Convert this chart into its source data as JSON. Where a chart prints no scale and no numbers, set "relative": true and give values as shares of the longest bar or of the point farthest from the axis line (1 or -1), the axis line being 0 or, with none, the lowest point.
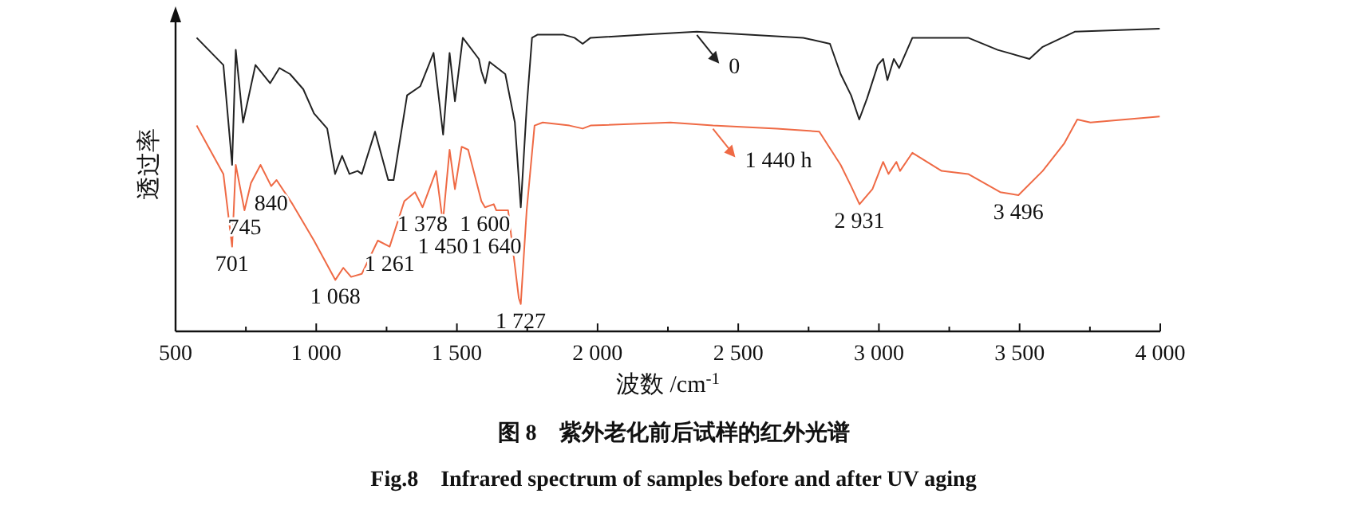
{
  "chart_data": {
    "type": "line",
    "title": "图 8　紫外老化前后试样的红外光谱",
    "subtitle": "Fig.8　Infrared spectrum of samples before and after UV aging",
    "xlabel": "波数 /cm$^{-1}$",
    "ylabel": "透过率",
    "relative": true,
    "legend": "top",
    "xlim": [
      500,
      4000
    ],
    "xticks": [
      {
        "value": 500,
        "label": "500"
      },
      {
        "value": 750,
        "label": null
      },
      {
        "value": 1000,
        "label": "1 000"
      },
      {
        "value": 1250,
        "label": null
      },
      {
        "value": 1500,
        "label": "1 500"
      },
      {
        "value": 1750,
        "label": null
      },
      {
        "value": 2000,
        "label": "2 000"
      },
      {
        "value": 2250,
        "label": null
      },
      {
        "value": 2500,
        "label": "2 500"
      },
      {
        "value": 2750,
        "label": null
      },
      {
        "value": 3000,
        "label": "3 000"
      },
      {
        "value": 3250,
        "label": null
      },
      {
        "value": 3500,
        "label": "3 500"
      },
      {
        "value": 3750,
        "label": null
      },
      {
        "value": 4000,
        "label": "4 000"
      }
    ],
    "series": [
      {
        "name": "0",
        "color": "#222222",
        "x": [
          575,
          670,
          701,
          714,
          740,
          784,
          836,
          869,
          907,
          954,
          992,
          1039,
          1067,
          1092,
          1118,
          1147,
          1162,
          1209,
          1256,
          1275,
          1323,
          1370,
          1417,
          1451,
          1474,
          1493,
          1521,
          1578,
          1587,
          1601,
          1616,
          1672,
          1706,
          1727,
          1748,
          1767,
          1786,
          1843,
          1880,
          1918,
          1947,
          1975,
          2163,
          2353,
          2731,
          2826,
          2864,
          2901,
          2930,
          2958,
          2996,
          3015,
          3030,
          3053,
          3072,
          3119,
          3317,
          3422,
          3535,
          3582,
          3696,
          3998
        ],
        "values": [
          0.97,
          0.88,
          0.55,
          0.93,
          0.69,
          0.88,
          0.82,
          0.87,
          0.85,
          0.8,
          0.72,
          0.67,
          0.52,
          0.58,
          0.52,
          0.53,
          0.52,
          0.66,
          0.5,
          0.5,
          0.78,
          0.81,
          0.92,
          0.65,
          0.92,
          0.76,
          0.97,
          0.9,
          0.86,
          0.82,
          0.89,
          0.85,
          0.69,
          0.41,
          0.74,
          0.97,
          0.98,
          0.98,
          0.98,
          0.97,
          0.95,
          0.97,
          0.98,
          0.99,
          0.97,
          0.95,
          0.85,
          0.78,
          0.7,
          0.77,
          0.88,
          0.9,
          0.83,
          0.9,
          0.87,
          0.97,
          0.97,
          0.93,
          0.9,
          0.94,
          0.99,
          1
        ]
      },
      {
        "name": "1 440 h",
        "color": "#ef6a45",
        "x": [
          575,
          670,
          701,
          714,
          745,
          768,
          802,
          840,
          859,
          916,
          992,
          1068,
          1096,
          1124,
          1162,
          1219,
          1261,
          1313,
          1351,
          1378,
          1426,
          1450,
          1474,
          1493,
          1517,
          1540,
          1587,
          1600,
          1631,
          1640,
          1682,
          1720,
          1727,
          1748,
          1776,
          1805,
          1900,
          1947,
          1975,
          2259,
          2410,
          2637,
          2788,
          2864,
          2901,
          2931,
          2977,
          3015,
          3034,
          3062,
          3075,
          3119,
          3223,
          3317,
          3431,
          3496,
          3582,
          3658,
          3705,
          3752,
          3998
        ],
        "values": [
          0.68,
          0.52,
          0.28,
          0.55,
          0.4,
          0.49,
          0.55,
          0.48,
          0.5,
          0.42,
          0.3,
          0.17,
          0.21,
          0.18,
          0.19,
          0.3,
          0.28,
          0.43,
          0.46,
          0.41,
          0.53,
          0.36,
          0.6,
          0.47,
          0.61,
          0.6,
          0.43,
          0.41,
          0.42,
          0.4,
          0.4,
          0.11,
          0.09,
          0.4,
          0.68,
          0.69,
          0.68,
          0.67,
          0.68,
          0.69,
          0.68,
          0.67,
          0.66,
          0.55,
          0.48,
          0.42,
          0.47,
          0.56,
          0.52,
          0.56,
          0.53,
          0.59,
          0.53,
          0.52,
          0.46,
          0.45,
          0.53,
          0.62,
          0.7,
          0.69,
          0.71
        ]
      }
    ],
    "annotations": [
      {
        "text": "701",
        "x": 701,
        "y": 0.28
      },
      {
        "text": "745",
        "x": 745,
        "y": 0.4
      },
      {
        "text": "840",
        "x": 840,
        "y": 0.48
      },
      {
        "text": "1 068",
        "x": 1068,
        "y": 0.17
      },
      {
        "text": "1 261",
        "x": 1261,
        "y": 0.28
      },
      {
        "text": "1 378",
        "x": 1378,
        "y": 0.41
      },
      {
        "text": "1 450",
        "x": 1450,
        "y": 0.36
      },
      {
        "text": "1 600",
        "x": 1600,
        "y": 0.41
      },
      {
        "text": "1 640",
        "x": 1640,
        "y": 0.4
      },
      {
        "text": "1 727",
        "x": 1727,
        "y": 0.09
      },
      {
        "text": "2 931",
        "x": 2931,
        "y": 0.42
      },
      {
        "text": "3 496",
        "x": 3496,
        "y": 0.45
      }
    ]
  }
}
